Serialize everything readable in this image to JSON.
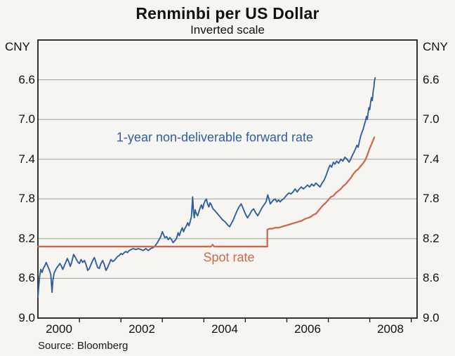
{
  "figure": {
    "title": "Renminbi per US Dollar",
    "subtitle": "Inverted scale",
    "unit_left": "CNY",
    "unit_right": "CNY",
    "source": "Source: Bloomberg"
  },
  "colors": {
    "forward_rate": "#2e5f9f",
    "spot_rate": "#cc6a4e",
    "grid": "#9f9f9f",
    "frame": "#1f1f1f",
    "background": "#f6f5f2",
    "text": "#111111"
  },
  "chart_data": {
    "type": "line",
    "title": "Renminbi per US Dollar",
    "subtitle": "Inverted scale",
    "xlabel": "",
    "ylabel": "CNY",
    "y_axis_inverted": true,
    "x_range": [
      2000.0,
      2009.14
    ],
    "y_range": [
      6.2,
      9.0
    ],
    "y_ticks": [
      6.6,
      7.0,
      7.4,
      7.8,
      8.2,
      8.6,
      9.0
    ],
    "x_minor_ticks": [
      2001,
      2002,
      2003,
      2004,
      2005,
      2006,
      2007,
      2008,
      2009
    ],
    "x_labels": [
      2000,
      2002,
      2004,
      2006,
      2008
    ],
    "grid": "horizontal",
    "legend_position": "inline-annotations",
    "source": "Source: Bloomberg",
    "series": [
      {
        "name": "1-year non-deliverable forward rate",
        "color": "#2e5f9f",
        "points": [
          [
            2000.0,
            8.79
          ],
          [
            2000.02,
            8.68
          ],
          [
            2000.04,
            8.58
          ],
          [
            2000.07,
            8.51
          ],
          [
            2000.1,
            8.54
          ],
          [
            2000.13,
            8.5
          ],
          [
            2000.17,
            8.47
          ],
          [
            2000.2,
            8.44
          ],
          [
            2000.24,
            8.48
          ],
          [
            2000.28,
            8.52
          ],
          [
            2000.31,
            8.56
          ],
          [
            2000.34,
            8.74
          ],
          [
            2000.36,
            8.62
          ],
          [
            2000.39,
            8.55
          ],
          [
            2000.42,
            8.52
          ],
          [
            2000.46,
            8.49
          ],
          [
            2000.5,
            8.47
          ],
          [
            2000.53,
            8.45
          ],
          [
            2000.57,
            8.48
          ],
          [
            2000.6,
            8.51
          ],
          [
            2000.64,
            8.47
          ],
          [
            2000.68,
            8.43
          ],
          [
            2000.71,
            8.4
          ],
          [
            2000.75,
            8.44
          ],
          [
            2000.78,
            8.48
          ],
          [
            2000.82,
            8.43
          ],
          [
            2000.86,
            8.36
          ],
          [
            2000.89,
            8.38
          ],
          [
            2000.93,
            8.41
          ],
          [
            2000.97,
            8.44
          ],
          [
            2001.0,
            8.45
          ],
          [
            2001.04,
            8.41
          ],
          [
            2001.08,
            8.44
          ],
          [
            2001.12,
            8.42
          ],
          [
            2001.16,
            8.46
          ],
          [
            2001.2,
            8.52
          ],
          [
            2001.24,
            8.5
          ],
          [
            2001.28,
            8.46
          ],
          [
            2001.32,
            8.42
          ],
          [
            2001.36,
            8.39
          ],
          [
            2001.4,
            8.44
          ],
          [
            2001.44,
            8.49
          ],
          [
            2001.48,
            8.5
          ],
          [
            2001.52,
            8.45
          ],
          [
            2001.56,
            8.42
          ],
          [
            2001.6,
            8.46
          ],
          [
            2001.64,
            8.52
          ],
          [
            2001.68,
            8.49
          ],
          [
            2001.72,
            8.45
          ],
          [
            2001.76,
            8.41
          ],
          [
            2001.8,
            8.43
          ],
          [
            2001.84,
            8.42
          ],
          [
            2001.88,
            8.4
          ],
          [
            2001.92,
            8.38
          ],
          [
            2001.96,
            8.37
          ],
          [
            2002.0,
            8.35
          ],
          [
            2002.04,
            8.36
          ],
          [
            2002.08,
            8.34
          ],
          [
            2002.12,
            8.33
          ],
          [
            2002.16,
            8.34
          ],
          [
            2002.2,
            8.32
          ],
          [
            2002.25,
            8.31
          ],
          [
            2002.3,
            8.3
          ],
          [
            2002.36,
            8.31
          ],
          [
            2002.42,
            8.3
          ],
          [
            2002.48,
            8.31
          ],
          [
            2002.54,
            8.32
          ],
          [
            2002.6,
            8.3
          ],
          [
            2002.66,
            8.32
          ],
          [
            2002.72,
            8.3
          ],
          [
            2002.78,
            8.29
          ],
          [
            2002.83,
            8.27
          ],
          [
            2002.88,
            8.24
          ],
          [
            2002.92,
            8.21
          ],
          [
            2002.96,
            8.18
          ],
          [
            2003.0,
            8.13
          ],
          [
            2003.03,
            8.16
          ],
          [
            2003.06,
            8.19
          ],
          [
            2003.1,
            8.18
          ],
          [
            2003.14,
            8.21
          ],
          [
            2003.18,
            8.19
          ],
          [
            2003.22,
            8.21
          ],
          [
            2003.26,
            8.24
          ],
          [
            2003.3,
            8.22
          ],
          [
            2003.34,
            8.2
          ],
          [
            2003.38,
            8.14
          ],
          [
            2003.41,
            8.17
          ],
          [
            2003.44,
            8.13
          ],
          [
            2003.48,
            8.09
          ],
          [
            2003.51,
            8.13
          ],
          [
            2003.54,
            8.1
          ],
          [
            2003.58,
            8.07
          ],
          [
            2003.61,
            8.04
          ],
          [
            2003.64,
            8.07
          ],
          [
            2003.67,
            8.03
          ],
          [
            2003.7,
            7.98
          ],
          [
            2003.73,
            7.78
          ],
          [
            2003.75,
            7.93
          ],
          [
            2003.77,
            7.99
          ],
          [
            2003.79,
            7.91
          ],
          [
            2003.82,
            7.95
          ],
          [
            2003.85,
            7.97
          ],
          [
            2003.88,
            7.93
          ],
          [
            2003.91,
            7.89
          ],
          [
            2003.94,
            7.86
          ],
          [
            2003.97,
            7.9
          ],
          [
            2004.0,
            7.85
          ],
          [
            2004.03,
            7.82
          ],
          [
            2004.06,
            7.8
          ],
          [
            2004.09,
            7.85
          ],
          [
            2004.12,
            7.88
          ],
          [
            2004.15,
            7.84
          ],
          [
            2004.18,
            7.86
          ],
          [
            2004.22,
            7.9
          ],
          [
            2004.27,
            7.92
          ],
          [
            2004.33,
            7.95
          ],
          [
            2004.39,
            7.98
          ],
          [
            2004.45,
            8.01
          ],
          [
            2004.51,
            8.03
          ],
          [
            2004.57,
            8.06
          ],
          [
            2004.62,
            8.08
          ],
          [
            2004.66,
            8.05
          ],
          [
            2004.7,
            8.02
          ],
          [
            2004.75,
            7.97
          ],
          [
            2004.8,
            7.92
          ],
          [
            2004.85,
            7.88
          ],
          [
            2004.9,
            7.85
          ],
          [
            2004.95,
            7.9
          ],
          [
            2005.0,
            7.95
          ],
          [
            2005.05,
            7.99
          ],
          [
            2005.1,
            7.96
          ],
          [
            2005.15,
            7.92
          ],
          [
            2005.2,
            7.9
          ],
          [
            2005.25,
            7.94
          ],
          [
            2005.3,
            7.97
          ],
          [
            2005.35,
            7.93
          ],
          [
            2005.4,
            7.89
          ],
          [
            2005.45,
            7.86
          ],
          [
            2005.5,
            7.83
          ],
          [
            2005.54,
            7.76
          ],
          [
            2005.57,
            7.8
          ],
          [
            2005.6,
            7.85
          ],
          [
            2005.64,
            7.83
          ],
          [
            2005.68,
            7.81
          ],
          [
            2005.72,
            7.8
          ],
          [
            2005.76,
            7.83
          ],
          [
            2005.8,
            7.81
          ],
          [
            2005.84,
            7.83
          ],
          [
            2005.88,
            7.81
          ],
          [
            2005.92,
            7.8
          ],
          [
            2005.96,
            7.78
          ],
          [
            2006.0,
            7.76
          ],
          [
            2006.05,
            7.74
          ],
          [
            2006.1,
            7.75
          ],
          [
            2006.15,
            7.73
          ],
          [
            2006.2,
            7.7
          ],
          [
            2006.25,
            7.73
          ],
          [
            2006.3,
            7.7
          ],
          [
            2006.35,
            7.68
          ],
          [
            2006.4,
            7.7
          ],
          [
            2006.45,
            7.68
          ],
          [
            2006.5,
            7.66
          ],
          [
            2006.55,
            7.68
          ],
          [
            2006.6,
            7.65
          ],
          [
            2006.65,
            7.67
          ],
          [
            2006.7,
            7.64
          ],
          [
            2006.75,
            7.66
          ],
          [
            2006.8,
            7.68
          ],
          [
            2006.85,
            7.64
          ],
          [
            2006.9,
            7.61
          ],
          [
            2006.95,
            7.56
          ],
          [
            2007.0,
            7.5
          ],
          [
            2007.04,
            7.46
          ],
          [
            2007.08,
            7.48
          ],
          [
            2007.12,
            7.43
          ],
          [
            2007.16,
            7.45
          ],
          [
            2007.2,
            7.42
          ],
          [
            2007.25,
            7.44
          ],
          [
            2007.3,
            7.4
          ],
          [
            2007.35,
            7.42
          ],
          [
            2007.4,
            7.38
          ],
          [
            2007.45,
            7.4
          ],
          [
            2007.5,
            7.43
          ],
          [
            2007.54,
            7.4
          ],
          [
            2007.58,
            7.36
          ],
          [
            2007.62,
            7.33
          ],
          [
            2007.66,
            7.29
          ],
          [
            2007.69,
            7.26
          ],
          [
            2007.72,
            7.28
          ],
          [
            2007.75,
            7.22
          ],
          [
            2007.78,
            7.17
          ],
          [
            2007.81,
            7.13
          ],
          [
            2007.84,
            7.1
          ],
          [
            2007.87,
            7.05
          ],
          [
            2007.9,
            7.01
          ],
          [
            2007.92,
            6.97
          ],
          [
            2007.94,
            7.0
          ],
          [
            2007.96,
            6.93
          ],
          [
            2007.98,
            6.88
          ],
          [
            2008.0,
            6.9
          ],
          [
            2008.02,
            6.83
          ],
          [
            2008.04,
            6.78
          ],
          [
            2008.06,
            6.81
          ],
          [
            2008.08,
            6.72
          ],
          [
            2008.1,
            6.67
          ],
          [
            2008.11,
            6.62
          ],
          [
            2008.13,
            6.58
          ]
        ]
      },
      {
        "name": "Spot rate",
        "color": "#cc6a4e",
        "points": [
          [
            2000.0,
            8.28
          ],
          [
            2001.0,
            8.28
          ],
          [
            2002.0,
            8.28
          ],
          [
            2003.0,
            8.28
          ],
          [
            2004.17,
            8.28
          ],
          [
            2004.21,
            8.26
          ],
          [
            2004.25,
            8.28
          ],
          [
            2005.53,
            8.28
          ],
          [
            2005.53,
            8.11
          ],
          [
            2005.58,
            8.1
          ],
          [
            2005.65,
            8.1
          ],
          [
            2005.72,
            8.09
          ],
          [
            2005.8,
            8.09
          ],
          [
            2005.88,
            8.08
          ],
          [
            2005.96,
            8.07
          ],
          [
            2006.04,
            8.06
          ],
          [
            2006.12,
            8.05
          ],
          [
            2006.2,
            8.04
          ],
          [
            2006.28,
            8.03
          ],
          [
            2006.36,
            8.02
          ],
          [
            2006.44,
            8.0
          ],
          [
            2006.52,
            7.99
          ],
          [
            2006.58,
            7.98
          ],
          [
            2006.64,
            7.96
          ],
          [
            2006.7,
            7.95
          ],
          [
            2006.76,
            7.92
          ],
          [
            2006.82,
            7.89
          ],
          [
            2006.88,
            7.86
          ],
          [
            2006.94,
            7.84
          ],
          [
            2007.0,
            7.81
          ],
          [
            2007.06,
            7.78
          ],
          [
            2007.12,
            7.77
          ],
          [
            2007.18,
            7.74
          ],
          [
            2007.24,
            7.72
          ],
          [
            2007.3,
            7.7
          ],
          [
            2007.36,
            7.67
          ],
          [
            2007.42,
            7.65
          ],
          [
            2007.48,
            7.62
          ],
          [
            2007.54,
            7.59
          ],
          [
            2007.6,
            7.55
          ],
          [
            2007.66,
            7.52
          ],
          [
            2007.72,
            7.5
          ],
          [
            2007.78,
            7.47
          ],
          [
            2007.84,
            7.44
          ],
          [
            2007.89,
            7.41
          ],
          [
            2007.94,
            7.36
          ],
          [
            2007.98,
            7.31
          ],
          [
            2008.02,
            7.27
          ],
          [
            2008.06,
            7.23
          ],
          [
            2008.11,
            7.18
          ]
        ]
      }
    ],
    "annotations": [
      {
        "text": "1-year non-deliverable forward rate",
        "t": 2004.27,
        "v": 7.18,
        "color": "#2e5f9f"
      },
      {
        "text": "Spot rate",
        "t": 2004.6,
        "v": 8.39,
        "color": "#cc6a4e"
      }
    ]
  }
}
